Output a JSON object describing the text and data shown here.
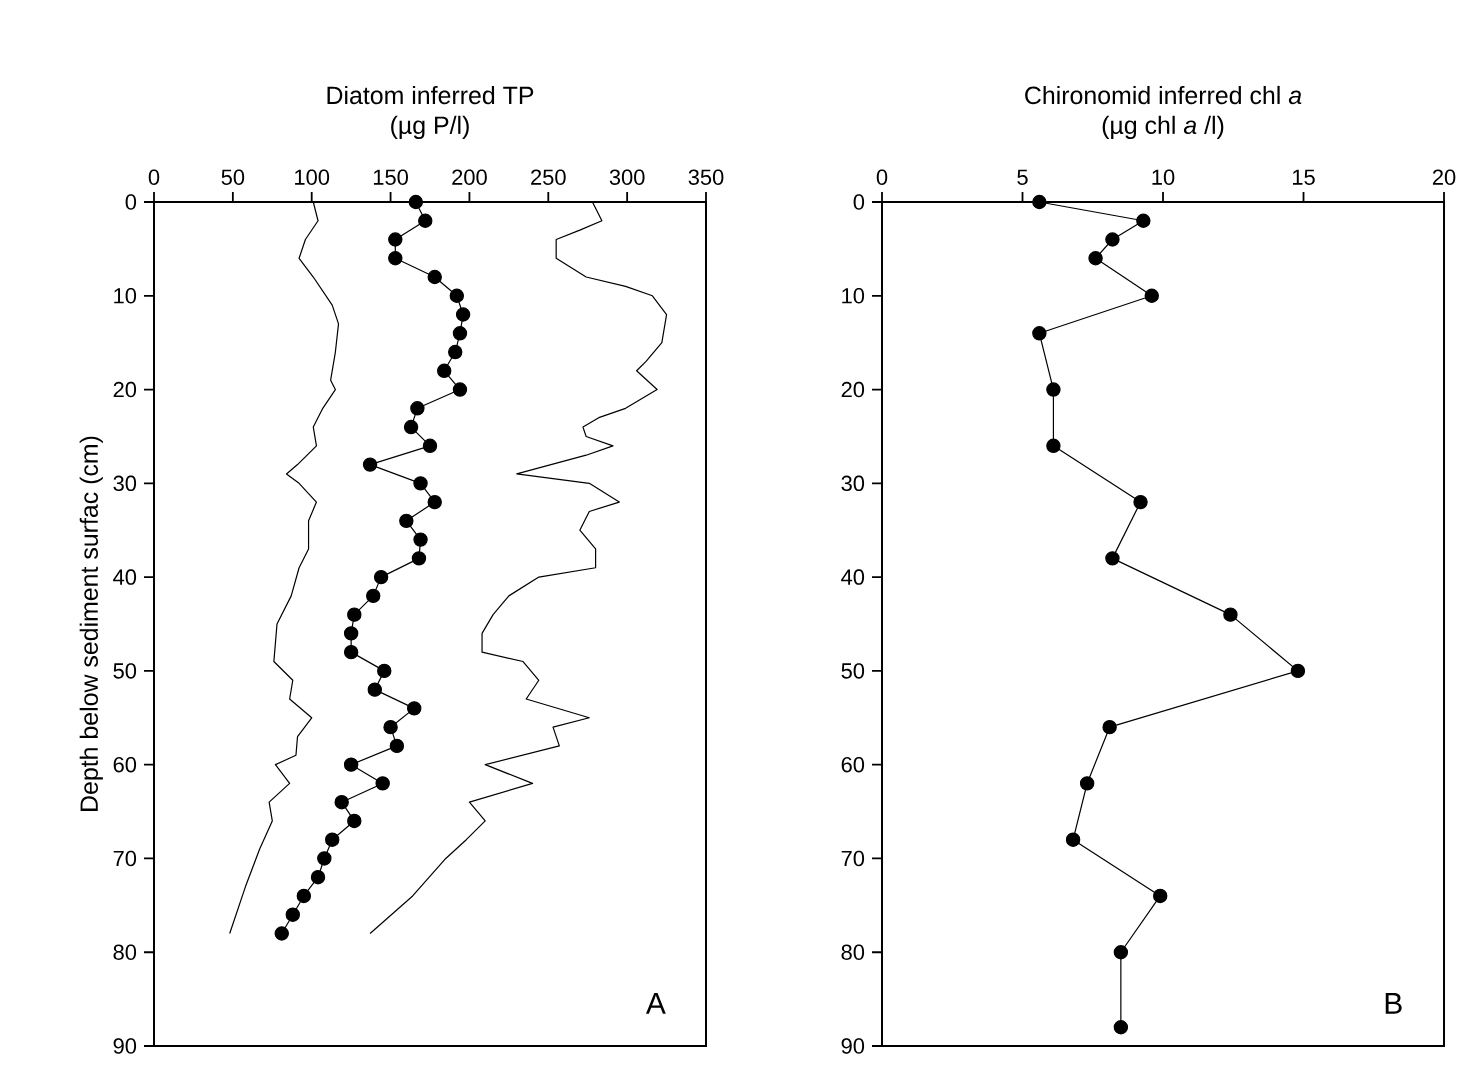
{
  "chart_data": [
    {
      "type": "line",
      "title": "Diatom inferred TP",
      "subtitle": "(µg P/l)",
      "ylabel": "Depth below sediment surfac (cm)",
      "annotations": [
        "A"
      ],
      "xlim": [
        0,
        350
      ],
      "xticks": [
        0,
        50,
        100,
        150,
        200,
        250,
        300,
        350
      ],
      "ylim": [
        90,
        0
      ],
      "yticks": [
        0,
        10,
        20,
        30,
        40,
        50,
        60,
        70,
        80,
        90
      ],
      "series": [
        {
          "color": "#000000",
          "marker": "none",
          "x": [
            101,
            104,
            96,
            92,
            101,
            113,
            117,
            115,
            112,
            115,
            107,
            101,
            103,
            91,
            84,
            92,
            103,
            98,
            98,
            92,
            87,
            78,
            76,
            88,
            86,
            100,
            91,
            90,
            77,
            86,
            73,
            75,
            67,
            58,
            48
          ],
          "values": [
            0,
            2,
            4,
            6,
            8,
            11,
            13,
            16,
            19,
            20,
            22,
            24,
            26,
            28,
            29,
            30,
            32,
            34,
            37,
            39,
            42,
            45,
            49,
            51,
            53,
            55,
            57,
            59,
            60,
            62,
            64,
            66,
            69,
            73,
            78
          ]
        },
        {
          "color": "#000000",
          "marker": "circle",
          "x": [
            166,
            172,
            153,
            153,
            178,
            192,
            196,
            194,
            191,
            184,
            194,
            167,
            163,
            175,
            137,
            169,
            178,
            160,
            169,
            168,
            144,
            139,
            127,
            125,
            125,
            146,
            140,
            165,
            150,
            154,
            125,
            145,
            119,
            127,
            113,
            108,
            104,
            95,
            88,
            81
          ],
          "values": [
            0,
            2,
            4,
            6,
            8,
            10,
            12,
            14,
            16,
            18,
            20,
            22,
            24,
            26,
            28,
            30,
            32,
            34,
            36,
            38,
            40,
            42,
            44,
            46,
            48,
            50,
            52,
            54,
            56,
            58,
            60,
            62,
            64,
            66,
            68,
            70,
            72,
            74,
            76,
            78
          ]
        },
        {
          "color": "#000000",
          "marker": "none",
          "x": [
            278,
            284,
            270,
            255,
            255,
            274,
            299,
            316,
            325,
            322,
            312,
            306,
            319,
            299,
            282,
            272,
            274,
            291,
            274,
            230,
            276,
            295,
            276,
            270,
            280,
            280,
            244,
            225,
            215,
            208,
            208,
            234,
            244,
            236,
            276,
            253,
            257,
            210,
            240,
            200,
            210,
            198,
            185,
            164,
            137
          ],
          "values": [
            0,
            2,
            3,
            4,
            6,
            8,
            9,
            10,
            12,
            15,
            17,
            18,
            20,
            22,
            23,
            24,
            25,
            26,
            27,
            29,
            30,
            32,
            33,
            35,
            37,
            39,
            40,
            42,
            44,
            46,
            48,
            49,
            51,
            53,
            55,
            56,
            58,
            60,
            62,
            64,
            66,
            68,
            70,
            74,
            78
          ]
        }
      ]
    },
    {
      "type": "line",
      "title": "Chironomid inferred chl *a*",
      "subtitle": "(µg chl *a* /l)",
      "annotations": [
        "B"
      ],
      "marker": "circle",
      "xlim": [
        0,
        20
      ],
      "xticks": [
        0,
        5,
        10,
        15,
        20
      ],
      "ylim": [
        90,
        0
      ],
      "yticks": [
        0,
        10,
        20,
        30,
        40,
        50,
        60,
        70,
        80,
        90
      ],
      "series": [
        {
          "color": "#000000",
          "x": [
            5.6,
            9.3,
            8.2,
            7.6,
            9.6,
            5.6,
            6.1,
            6.1,
            9.2,
            8.2,
            12.4,
            14.8,
            8.1,
            7.3,
            6.8,
            9.9,
            8.5,
            8.5
          ],
          "values": [
            0,
            2,
            4,
            6,
            10,
            14,
            20,
            26,
            32,
            38,
            44,
            50,
            56,
            62,
            68,
            74,
            80,
            88
          ]
        }
      ]
    }
  ]
}
